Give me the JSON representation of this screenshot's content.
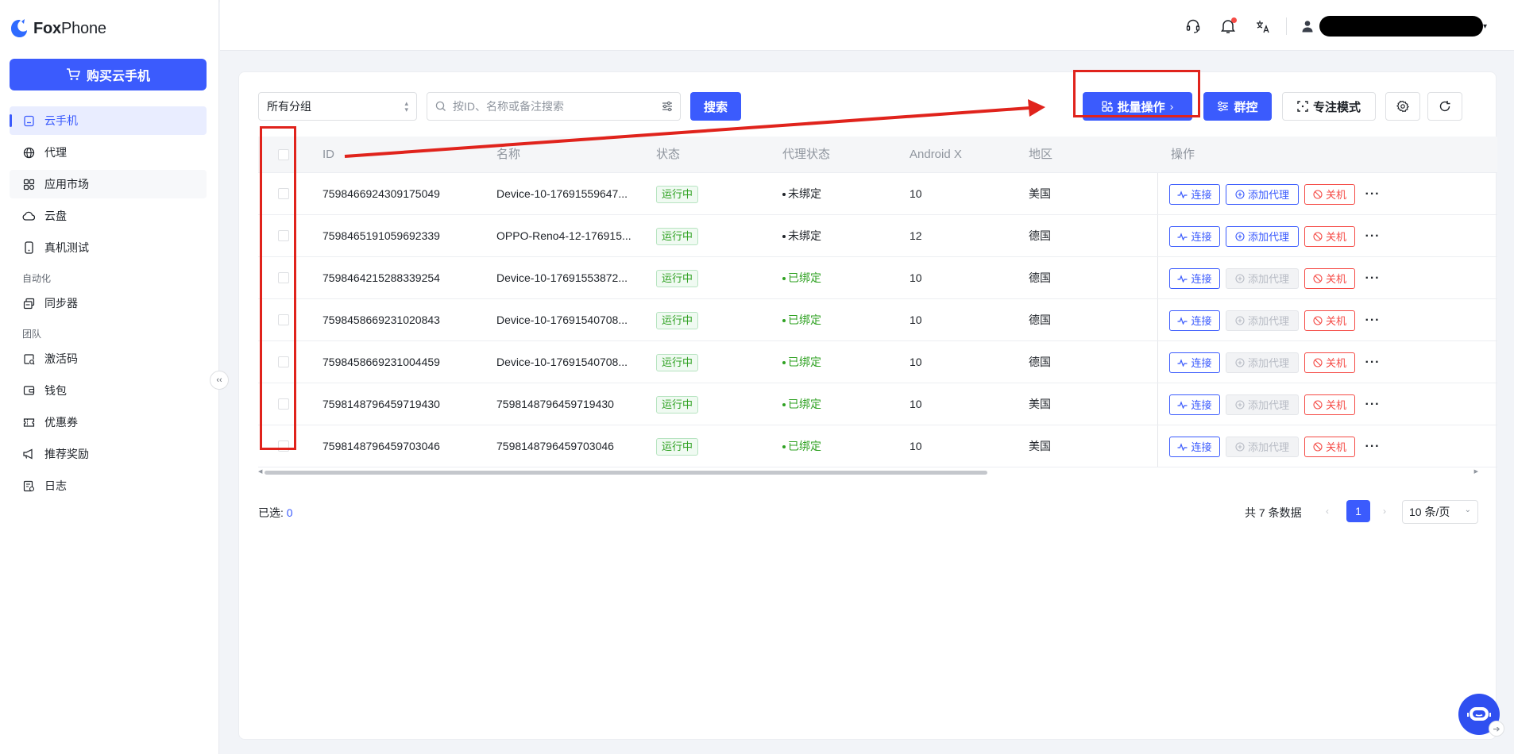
{
  "app": {
    "logo_text_bold": "Fox",
    "logo_text_rest": "Phone"
  },
  "sidebar": {
    "buy_label": "购买云手机",
    "items": [
      {
        "label": "云手机",
        "icon": "cloud-phone-icon",
        "active": true
      },
      {
        "label": "代理",
        "icon": "globe-icon"
      },
      {
        "label": "应用市场",
        "icon": "app-grid-icon"
      },
      {
        "label": "云盘",
        "icon": "cloud-icon"
      },
      {
        "label": "真机测试",
        "icon": "phone-icon"
      }
    ],
    "group_automation": "自动化",
    "items_automation": [
      {
        "label": "同步器",
        "icon": "sync-icon"
      }
    ],
    "group_team": "团队",
    "items_team": [
      {
        "label": "激活码",
        "icon": "code-icon"
      },
      {
        "label": "钱包",
        "icon": "wallet-icon"
      },
      {
        "label": "优惠券",
        "icon": "coupon-icon"
      },
      {
        "label": "推荐奖励",
        "icon": "megaphone-icon"
      },
      {
        "label": "日志",
        "icon": "log-icon"
      }
    ],
    "collapse_glyph": "‹‹"
  },
  "toolbar": {
    "group_select": "所有分组",
    "search_placeholder": "按ID、名称或备注搜索",
    "search_btn": "搜索",
    "batch_btn": "批量操作",
    "group_control_btn": "群控",
    "focus_mode_btn": "专注模式"
  },
  "table": {
    "columns": [
      "ID",
      "名称",
      "状态",
      "代理状态",
      "Android X",
      "地区",
      "操作"
    ],
    "rows": [
      {
        "id": "7598466924309175049",
        "name": "Device-10-17691559647...",
        "status": "运行中",
        "proxy": "未绑定",
        "bound": false,
        "android": "10",
        "region": "美国"
      },
      {
        "id": "7598465191059692339",
        "name": "OPPO-Reno4-12-176915...",
        "status": "运行中",
        "proxy": "未绑定",
        "bound": false,
        "android": "12",
        "region": "德国"
      },
      {
        "id": "7598464215288339254",
        "name": "Device-10-17691553872...",
        "status": "运行中",
        "proxy": "已绑定",
        "bound": true,
        "android": "10",
        "region": "德国"
      },
      {
        "id": "7598458669231020843",
        "name": "Device-10-17691540708...",
        "status": "运行中",
        "proxy": "已绑定",
        "bound": true,
        "android": "10",
        "region": "德国"
      },
      {
        "id": "7598458669231004459",
        "name": "Device-10-17691540708...",
        "status": "运行中",
        "proxy": "已绑定",
        "bound": true,
        "android": "10",
        "region": "德国"
      },
      {
        "id": "7598148796459719430",
        "name": "7598148796459719430",
        "status": "运行中",
        "proxy": "已绑定",
        "bound": true,
        "android": "10",
        "region": "美国"
      },
      {
        "id": "7598148796459703046",
        "name": "7598148796459703046",
        "status": "运行中",
        "proxy": "已绑定",
        "bound": true,
        "android": "10",
        "region": "美国"
      }
    ],
    "op_connect": "连接",
    "op_add_proxy": "添加代理",
    "op_shutdown": "关机"
  },
  "footer": {
    "selected_label": "已选:",
    "selected_count": "0",
    "total": "共 7 条数据",
    "page": "1",
    "page_size": "10 条/页"
  },
  "colors": {
    "primary": "#3b5bfd",
    "success": "#2ea121",
    "danger": "#f54a45",
    "annotation": "#e0231c"
  }
}
